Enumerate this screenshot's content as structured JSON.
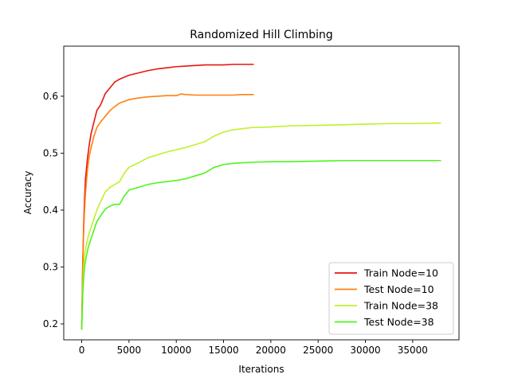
{
  "chart_data": {
    "type": "line",
    "title": "Randomized Hill Climbing",
    "xlabel": "Iterations",
    "ylabel": "Accuracy",
    "xlim": [
      -1900,
      39900
    ],
    "ylim": [
      0.172,
      0.688
    ],
    "xticks": [
      0,
      5000,
      10000,
      15000,
      20000,
      25000,
      30000,
      35000
    ],
    "yticks": [
      0.2,
      0.3,
      0.4,
      0.5,
      0.6
    ],
    "grid": false,
    "legend_position": "lower-right",
    "series": [
      {
        "name": "Train Node=10",
        "color": "#e8150e",
        "x": [
          0,
          100,
          200,
          300,
          400,
          600,
          800,
          1000,
          1300,
          1600,
          2000,
          2500,
          3000,
          3500,
          4000,
          5000,
          6000,
          7000,
          8000,
          9000,
          10000,
          11000,
          12000,
          13000,
          14000,
          15000,
          16000,
          17000,
          18200
        ],
        "y": [
          0.19,
          0.3,
          0.37,
          0.42,
          0.455,
          0.49,
          0.515,
          0.535,
          0.555,
          0.575,
          0.585,
          0.605,
          0.615,
          0.625,
          0.63,
          0.637,
          0.641,
          0.645,
          0.648,
          0.65,
          0.652,
          0.653,
          0.654,
          0.655,
          0.655,
          0.655,
          0.656,
          0.656,
          0.656
        ]
      },
      {
        "name": "Test Node=10",
        "color": "#ff7f0e",
        "x": [
          0,
          100,
          200,
          300,
          400,
          600,
          800,
          1000,
          1300,
          1600,
          2000,
          2500,
          3000,
          3500,
          4000,
          5000,
          6000,
          7000,
          8000,
          9000,
          10000,
          10500,
          11000,
          12000,
          13000,
          14000,
          15000,
          16000,
          17000,
          18200
        ],
        "y": [
          0.19,
          0.29,
          0.36,
          0.4,
          0.43,
          0.47,
          0.495,
          0.51,
          0.53,
          0.545,
          0.555,
          0.565,
          0.575,
          0.582,
          0.588,
          0.594,
          0.597,
          0.599,
          0.6,
          0.601,
          0.601,
          0.604,
          0.603,
          0.602,
          0.602,
          0.602,
          0.602,
          0.602,
          0.603,
          0.603
        ]
      },
      {
        "name": "Train Node=38",
        "color": "#c0f02a",
        "x": [
          0,
          100,
          200,
          300,
          500,
          700,
          1000,
          1300,
          1600,
          2000,
          2500,
          3000,
          3500,
          4000,
          4500,
          5000,
          6000,
          7000,
          8000,
          9000,
          10000,
          11000,
          12000,
          13000,
          14000,
          15000,
          16000,
          17000,
          18000,
          20000,
          22000,
          25000,
          28000,
          30000,
          33000,
          35000,
          38000
        ],
        "y": [
          0.19,
          0.26,
          0.3,
          0.32,
          0.34,
          0.355,
          0.37,
          0.385,
          0.4,
          0.415,
          0.432,
          0.44,
          0.445,
          0.45,
          0.465,
          0.475,
          0.483,
          0.492,
          0.497,
          0.502,
          0.506,
          0.51,
          0.515,
          0.52,
          0.53,
          0.537,
          0.541,
          0.543,
          0.545,
          0.546,
          0.548,
          0.549,
          0.55,
          0.551,
          0.552,
          0.552,
          0.553
        ]
      },
      {
        "name": "Test Node=38",
        "color": "#4cf51c",
        "x": [
          0,
          100,
          200,
          300,
          500,
          700,
          1000,
          1300,
          1600,
          2000,
          2500,
          3000,
          3500,
          4000,
          4500,
          5000,
          6000,
          7000,
          8000,
          9000,
          10000,
          11000,
          12000,
          13000,
          14000,
          15000,
          16000,
          17000,
          18000,
          20000,
          22000,
          25000,
          28000,
          30000,
          33000,
          35000,
          38000
        ],
        "y": [
          0.19,
          0.25,
          0.28,
          0.3,
          0.32,
          0.335,
          0.35,
          0.365,
          0.38,
          0.39,
          0.402,
          0.407,
          0.41,
          0.41,
          0.425,
          0.435,
          0.44,
          0.445,
          0.448,
          0.45,
          0.452,
          0.455,
          0.46,
          0.465,
          0.475,
          0.48,
          0.482,
          0.483,
          0.484,
          0.485,
          0.485,
          0.486,
          0.487,
          0.487,
          0.487,
          0.487,
          0.487
        ]
      }
    ]
  }
}
